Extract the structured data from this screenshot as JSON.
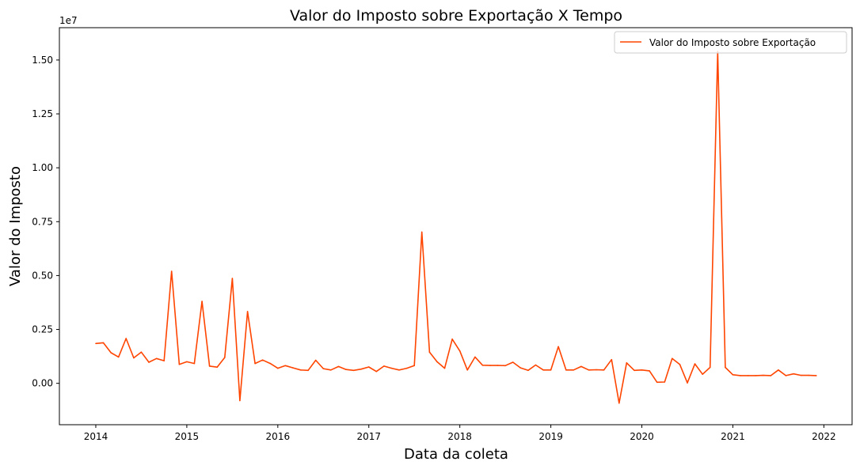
{
  "chart_data": {
    "type": "line",
    "title": "Valor do Imposto sobre Exportação X Tempo",
    "xlabel": "Data da coleta",
    "ylabel": "Valor do Imposto",
    "y_offset_label": "1e7",
    "xlim": [
      2013.6,
      2022.31
    ],
    "ylim": [
      -1.92,
      16.5
    ],
    "y_unit_multiplier": 10000000,
    "x_ticks": [
      2014,
      2015,
      2016,
      2017,
      2018,
      2019,
      2020,
      2021,
      2022
    ],
    "x_tick_labels": [
      "2014",
      "2015",
      "2016",
      "2017",
      "2018",
      "2019",
      "2020",
      "2021",
      "2022"
    ],
    "y_ticks": [
      0,
      2.5,
      5.0,
      7.5,
      10.0,
      12.5,
      15.0
    ],
    "y_tick_labels": [
      "0.00",
      "0.25",
      "0.50",
      "0.75",
      "1.00",
      "1.25",
      "1.50"
    ],
    "grid": false,
    "legend_position": "top-right",
    "color": "#ff4500",
    "series": [
      {
        "name": "Valor do Imposto sobre Exportação",
        "x": [
          2014.0,
          2014.083,
          2014.167,
          2014.25,
          2014.333,
          2014.417,
          2014.5,
          2014.583,
          2014.667,
          2014.75,
          2014.833,
          2014.917,
          2015.0,
          2015.083,
          2015.167,
          2015.25,
          2015.333,
          2015.417,
          2015.5,
          2015.583,
          2015.667,
          2015.75,
          2015.833,
          2015.917,
          2016.0,
          2016.083,
          2016.167,
          2016.25,
          2016.333,
          2016.417,
          2016.5,
          2016.583,
          2016.667,
          2016.75,
          2016.833,
          2016.917,
          2017.0,
          2017.083,
          2017.167,
          2017.25,
          2017.333,
          2017.417,
          2017.5,
          2017.583,
          2017.667,
          2017.75,
          2017.833,
          2017.917,
          2018.0,
          2018.083,
          2018.167,
          2018.25,
          2018.333,
          2018.417,
          2018.5,
          2018.583,
          2018.667,
          2018.75,
          2018.833,
          2018.917,
          2019.0,
          2019.083,
          2019.167,
          2019.25,
          2019.333,
          2019.417,
          2019.5,
          2019.583,
          2019.667,
          2019.75,
          2019.833,
          2019.917,
          2020.0,
          2020.083,
          2020.167,
          2020.25,
          2020.333,
          2020.417,
          2020.5,
          2020.583,
          2020.667,
          2020.75,
          2020.833,
          2020.917,
          2021.0,
          2021.083,
          2021.167,
          2021.25,
          2021.333,
          2021.417,
          2021.5,
          2021.583,
          2021.667,
          2021.75,
          2021.833,
          2021.917
        ],
        "values": [
          1.85,
          1.88,
          1.42,
          1.22,
          2.08,
          1.18,
          1.45,
          0.98,
          1.15,
          1.05,
          5.2,
          0.88,
          1.0,
          0.92,
          3.8,
          0.8,
          0.75,
          1.2,
          4.87,
          -0.8,
          3.33,
          0.92,
          1.08,
          0.92,
          0.7,
          0.82,
          0.72,
          0.62,
          0.6,
          1.07,
          0.68,
          0.62,
          0.78,
          0.64,
          0.6,
          0.66,
          0.76,
          0.55,
          0.8,
          0.7,
          0.62,
          0.7,
          0.82,
          7.02,
          1.45,
          1.0,
          0.7,
          2.05,
          1.5,
          0.62,
          1.22,
          0.84,
          0.83,
          0.83,
          0.82,
          0.98,
          0.72,
          0.6,
          0.85,
          0.62,
          0.62,
          1.7,
          0.62,
          0.62,
          0.78,
          0.62,
          0.63,
          0.62,
          1.1,
          -0.92,
          0.95,
          0.6,
          0.62,
          0.58,
          0.05,
          0.06,
          1.15,
          0.88,
          0.02,
          0.9,
          0.42,
          0.74,
          15.4,
          0.74,
          0.4,
          0.36,
          0.36,
          0.36,
          0.37,
          0.36,
          0.62,
          0.36,
          0.44,
          0.37,
          0.37,
          0.36
        ]
      }
    ]
  }
}
